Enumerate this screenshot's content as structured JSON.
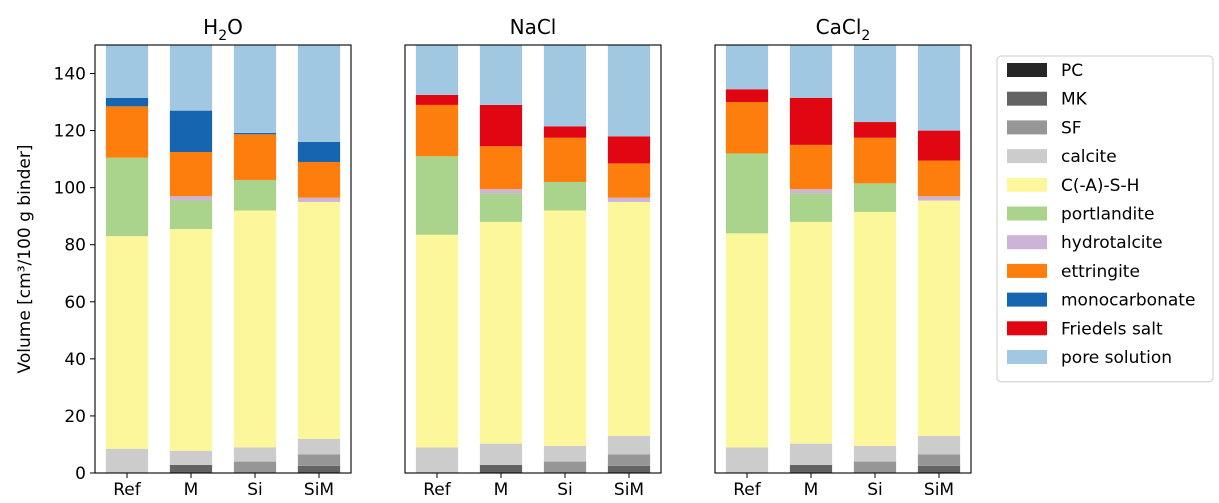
{
  "chart_data": {
    "type": "bar",
    "stacked": true,
    "ylabel": "Volume [cm³/100 g binder]",
    "ylim": [
      0,
      150
    ],
    "yticks": [
      0,
      20,
      40,
      60,
      80,
      100,
      120,
      140
    ],
    "categories": [
      "Ref",
      "M",
      "Si",
      "SiM"
    ],
    "legend_position": "right",
    "series": [
      {
        "name": "PC",
        "color": "#262626"
      },
      {
        "name": "MK",
        "color": "#636363"
      },
      {
        "name": "SF",
        "color": "#969696"
      },
      {
        "name": "calcite",
        "color": "#cccccc"
      },
      {
        "name": "C(-A)-S-H",
        "color": "#fdf79c"
      },
      {
        "name": "portlandite",
        "color": "#aad48c"
      },
      {
        "name": "hydrotalcite",
        "color": "#cdb4d6"
      },
      {
        "name": "ettringite",
        "color": "#fd7e0d"
      },
      {
        "name": "monocarbonate",
        "color": "#1665b0"
      },
      {
        "name": "Friedels salt",
        "color": "#e00712"
      },
      {
        "name": "pore solution",
        "color": "#a1c8e3"
      }
    ],
    "panels": [
      {
        "title_main": "H",
        "title_sub": "2",
        "title_rest": "O",
        "bars": [
          {
            "category": "Ref",
            "values": [
              0,
              0,
              0,
              8.5,
              74.5,
              27.5,
              0,
              18,
              3,
              0,
              18.5
            ]
          },
          {
            "category": "M",
            "values": [
              0,
              2.8,
              0,
              5.0,
              77.7,
              10.0,
              1.5,
              15.5,
              14.5,
              0,
              23.0
            ]
          },
          {
            "category": "Si",
            "values": [
              0,
              0,
              4.0,
              5.0,
              83.0,
              10.7,
              0,
              16.0,
              0.5,
              0,
              30.8
            ]
          },
          {
            "category": "SiM",
            "values": [
              0,
              2.5,
              4.0,
              5.5,
              83.0,
              0,
              1.5,
              12.5,
              7.0,
              0,
              34.0
            ]
          }
        ]
      },
      {
        "title_main": "NaCl",
        "title_sub": "",
        "title_rest": "",
        "bars": [
          {
            "category": "Ref",
            "values": [
              0,
              0,
              0,
              9.0,
              74.5,
              27.5,
              0,
              18,
              0,
              3.5,
              17.5
            ]
          },
          {
            "category": "M",
            "values": [
              0,
              2.8,
              0,
              7.5,
              77.7,
              10.0,
              1.5,
              15.0,
              0,
              14.5,
              21.0
            ]
          },
          {
            "category": "Si",
            "values": [
              0,
              0,
              4.0,
              5.5,
              82.5,
              10.0,
              0,
              15.5,
              0,
              4.0,
              28.5
            ]
          },
          {
            "category": "SiM",
            "values": [
              0,
              2.5,
              4.0,
              6.5,
              82.0,
              0,
              1.5,
              12.0,
              0,
              9.5,
              32.0
            ]
          }
        ]
      },
      {
        "title_main": "CaCl",
        "title_sub": "2",
        "title_rest": "",
        "bars": [
          {
            "category": "Ref",
            "values": [
              0,
              0,
              0,
              9.0,
              75.0,
              28.0,
              0,
              18.0,
              0,
              4.5,
              15.5
            ]
          },
          {
            "category": "M",
            "values": [
              0,
              2.8,
              0,
              7.5,
              77.7,
              10.0,
              1.5,
              15.5,
              0,
              16.5,
              18.5
            ]
          },
          {
            "category": "Si",
            "values": [
              0,
              0,
              4.0,
              5.5,
              82.0,
              10.0,
              0,
              16.0,
              0,
              5.5,
              27.0
            ]
          },
          {
            "category": "SiM",
            "values": [
              0,
              2.5,
              4.0,
              6.5,
              82.5,
              0,
              1.5,
              12.5,
              0,
              10.5,
              30.0
            ]
          }
        ]
      }
    ]
  }
}
